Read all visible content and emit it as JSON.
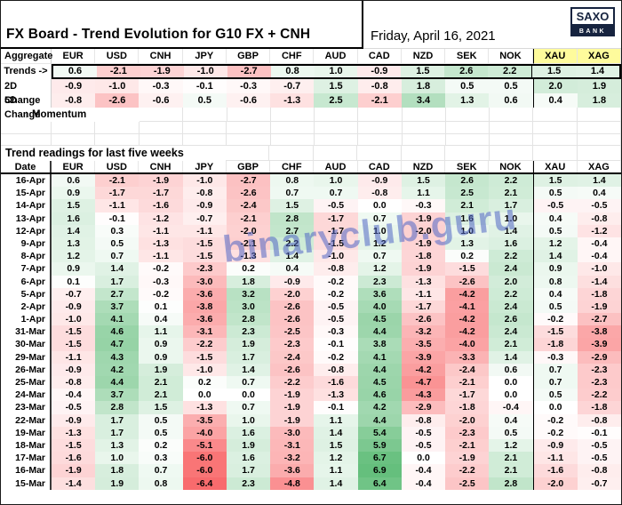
{
  "header": {
    "title": "FX Board - Trend Evolution for G10 FX + CNH",
    "date": "Friday, April 16, 2021",
    "logo_top": "SAXO",
    "logo_bottom": "BANK"
  },
  "watermark": "binaryclub.guru",
  "sections": {
    "momentum_label": "↑ Momentum",
    "history_title": "Trend readings for last five weeks"
  },
  "colors": {
    "positive_extreme": "#63BE7B",
    "negative_extreme": "#F8696B",
    "zero": "#FFFFFF",
    "header_highlight": "#FEFB9C",
    "logo_navy": "#16233F"
  },
  "chart_data": {
    "type": "heatmap",
    "columns": [
      "EUR",
      "USD",
      "CNH",
      "JPY",
      "GBP",
      "CHF",
      "AUD",
      "CAD",
      "NZD",
      "SEK",
      "NOK",
      "XAU",
      "XAG"
    ],
    "highlighted_columns": [
      "XAU",
      "XAG"
    ],
    "color_scale": {
      "negative": "#F8696B",
      "zero": "#FFFFFF",
      "positive": "#63BE7B",
      "negative_domain": [
        -6.5,
        0
      ],
      "positive_domain": [
        0,
        7
      ]
    },
    "aggregate": {
      "corner_label": "Aggregate",
      "rows": [
        {
          "label": "Trends ->",
          "values": [
            0.6,
            -2.1,
            -1.9,
            -1.0,
            -2.7,
            0.8,
            1.0,
            -0.9,
            1.5,
            2.6,
            2.2,
            1.5,
            1.4
          ]
        },
        {
          "label": "2D Change",
          "values": [
            -0.9,
            -1.0,
            -0.3,
            -0.1,
            -0.3,
            -0.7,
            1.5,
            -0.8,
            1.8,
            0.5,
            0.5,
            2.0,
            1.9
          ]
        },
        {
          "label": "5D Change",
          "values": [
            -0.8,
            -2.6,
            -0.6,
            0.5,
            -0.6,
            -1.3,
            2.5,
            -2.1,
            3.4,
            1.3,
            0.6,
            0.4,
            1.8
          ]
        }
      ]
    },
    "history": {
      "date_header": "Date",
      "rows": [
        {
          "date": "16-Apr",
          "values": [
            0.6,
            -2.1,
            -1.9,
            -1.0,
            -2.7,
            0.8,
            1.0,
            -0.9,
            1.5,
            2.6,
            2.2,
            1.5,
            1.4
          ]
        },
        {
          "date": "15-Apr",
          "values": [
            0.9,
            -1.7,
            -1.7,
            -0.8,
            -2.6,
            0.7,
            0.7,
            -0.8,
            1.1,
            2.5,
            2.1,
            0.5,
            0.4
          ]
        },
        {
          "date": "14-Apr",
          "values": [
            1.5,
            -1.1,
            -1.6,
            -0.9,
            -2.4,
            1.5,
            -0.5,
            0.0,
            -0.3,
            2.1,
            1.7,
            -0.5,
            -0.5
          ]
        },
        {
          "date": "13-Apr",
          "values": [
            1.6,
            -0.1,
            -1.2,
            -0.7,
            -2.1,
            2.8,
            -1.7,
            0.7,
            -1.9,
            1.6,
            1.0,
            0.4,
            -0.8
          ]
        },
        {
          "date": "12-Apr",
          "values": [
            1.4,
            0.3,
            -1.1,
            -1.1,
            -2.0,
            2.7,
            -1.7,
            1.0,
            -2.0,
            1.0,
            1.4,
            0.5,
            -1.2
          ]
        },
        {
          "date": "9-Apr",
          "values": [
            1.3,
            0.5,
            -1.3,
            -1.5,
            -2.1,
            2.2,
            -1.5,
            1.2,
            -1.9,
            1.3,
            1.6,
            1.2,
            -0.4
          ]
        },
        {
          "date": "8-Apr",
          "values": [
            1.2,
            0.7,
            -1.1,
            -1.5,
            -1.3,
            1.4,
            -1.0,
            0.7,
            -1.8,
            0.2,
            2.2,
            1.4,
            -0.4
          ]
        },
        {
          "date": "7-Apr",
          "values": [
            0.9,
            1.4,
            -0.2,
            -2.3,
            0.2,
            0.4,
            -0.8,
            1.2,
            -1.9,
            -1.5,
            2.4,
            0.9,
            -1.0
          ]
        },
        {
          "date": "6-Apr",
          "values": [
            0.1,
            1.7,
            -0.3,
            -3.0,
            1.8,
            -0.9,
            -0.2,
            2.3,
            -1.3,
            -2.6,
            2.0,
            0.8,
            -1.4
          ]
        },
        {
          "date": "5-Apr",
          "values": [
            -0.7,
            2.7,
            -0.2,
            -3.6,
            3.2,
            -2.0,
            -0.2,
            3.6,
            -1.1,
            -4.2,
            2.2,
            0.4,
            -1.8
          ]
        },
        {
          "date": "2-Apr",
          "values": [
            -0.9,
            3.7,
            0.1,
            -3.8,
            3.0,
            -2.6,
            -0.5,
            4.0,
            -1.7,
            -4.1,
            2.4,
            0.5,
            -1.9
          ]
        },
        {
          "date": "1-Apr",
          "values": [
            -1.0,
            4.1,
            0.4,
            -3.6,
            2.8,
            -2.6,
            -0.5,
            4.5,
            -2.6,
            -4.2,
            2.6,
            -0.2,
            -2.7
          ]
        },
        {
          "date": "31-Mar",
          "values": [
            -1.5,
            4.6,
            1.1,
            -3.1,
            2.3,
            -2.5,
            -0.3,
            4.4,
            -3.2,
            -4.2,
            2.4,
            -1.5,
            -3.8
          ]
        },
        {
          "date": "30-Mar",
          "values": [
            -1.5,
            4.7,
            0.9,
            -2.2,
            1.9,
            -2.3,
            -0.1,
            3.8,
            -3.5,
            -4.0,
            2.1,
            -1.8,
            -3.9
          ]
        },
        {
          "date": "29-Mar",
          "values": [
            -1.1,
            4.3,
            0.9,
            -1.5,
            1.7,
            -2.4,
            -0.2,
            4.1,
            -3.9,
            -3.3,
            1.4,
            -0.3,
            -2.9
          ]
        },
        {
          "date": "26-Mar",
          "values": [
            -0.9,
            4.2,
            1.9,
            -1.0,
            1.4,
            -2.6,
            -0.8,
            4.4,
            -4.2,
            -2.4,
            0.6,
            0.7,
            -2.3
          ]
        },
        {
          "date": "25-Mar",
          "values": [
            -0.8,
            4.4,
            2.1,
            0.2,
            0.7,
            -2.2,
            -1.6,
            4.5,
            -4.7,
            -2.1,
            0.0,
            0.7,
            -2.3
          ]
        },
        {
          "date": "24-Mar",
          "values": [
            -0.4,
            3.7,
            2.1,
            0.0,
            0.0,
            -1.9,
            -1.3,
            4.6,
            -4.3,
            -1.7,
            0.0,
            0.5,
            -2.2
          ]
        },
        {
          "date": "23-Mar",
          "values": [
            -0.5,
            2.8,
            1.5,
            -1.3,
            0.7,
            -1.9,
            -0.1,
            4.2,
            -2.9,
            -1.8,
            -0.4,
            0.0,
            -1.8
          ]
        },
        {
          "date": "22-Mar",
          "values": [
            -0.9,
            1.7,
            0.5,
            -3.5,
            1.0,
            -1.9,
            1.1,
            4.4,
            -0.8,
            -2.0,
            0.4,
            -0.2,
            -0.8
          ]
        },
        {
          "date": "19-Mar",
          "values": [
            -1.3,
            1.7,
            0.5,
            -4.0,
            1.6,
            -3.0,
            1.4,
            5.4,
            -0.5,
            -2.3,
            0.5,
            -0.2,
            -0.1
          ]
        },
        {
          "date": "18-Mar",
          "values": [
            -1.5,
            1.3,
            0.2,
            -5.1,
            1.9,
            -3.1,
            1.5,
            5.9,
            -0.5,
            -2.1,
            1.2,
            -0.9,
            -0.5
          ]
        },
        {
          "date": "17-Mar",
          "values": [
            -1.6,
            1.0,
            0.3,
            -6.0,
            1.6,
            -3.2,
            1.2,
            6.7,
            0.0,
            -1.9,
            2.1,
            -1.1,
            -0.5
          ]
        },
        {
          "date": "16-Mar",
          "values": [
            -1.9,
            1.8,
            0.7,
            -6.0,
            1.7,
            -3.6,
            1.1,
            6.9,
            -0.4,
            -2.2,
            2.1,
            -1.6,
            -0.8
          ]
        },
        {
          "date": "15-Mar",
          "values": [
            -1.4,
            1.9,
            0.8,
            -6.4,
            2.3,
            -4.8,
            1.4,
            6.4,
            -0.4,
            -2.5,
            2.8,
            -2.0,
            -0.7
          ]
        }
      ]
    }
  }
}
